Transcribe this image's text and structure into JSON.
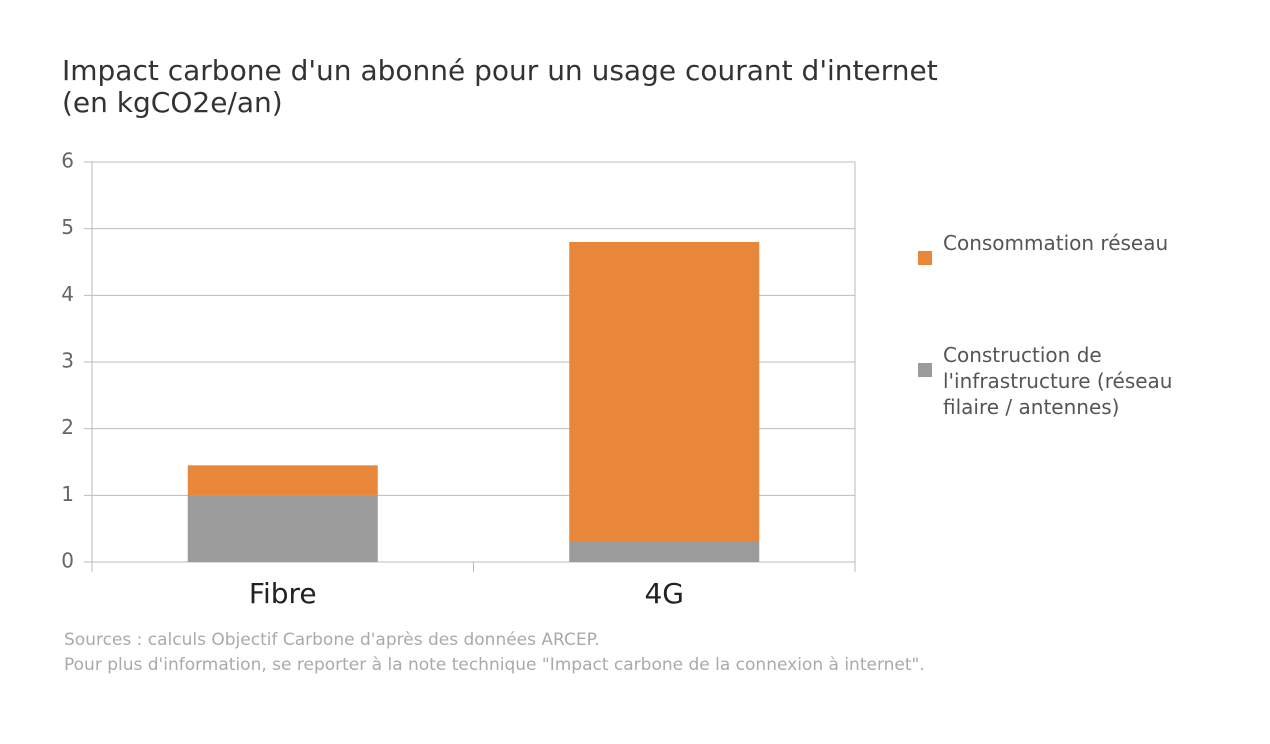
{
  "chart_data": {
    "type": "stacked_bar",
    "title": "Impact carbone d'un abonné pour un usage courant d'internet",
    "subtitle": "(en kgCO2e/an)",
    "categories": [
      "Fibre",
      "4G"
    ],
    "series": [
      {
        "name": "Construction de l'infrastructure (réseau filaire / antennes)",
        "color": "#9b9b9b",
        "values": [
          1.0,
          0.3
        ]
      },
      {
        "name": "Consommation réseau",
        "color": "#e8873a",
        "values": [
          0.45,
          4.5
        ]
      }
    ],
    "ylim": [
      0,
      6
    ],
    "yticks": [
      0,
      1,
      2,
      3,
      4,
      5,
      6
    ],
    "grid": true,
    "notes": [
      "Sources : calculs Objectif Carbone d'après des données ARCEP.",
      "Pour plus d'information, se reporter à la note technique \"Impact carbone de la connexion à internet\"."
    ]
  }
}
